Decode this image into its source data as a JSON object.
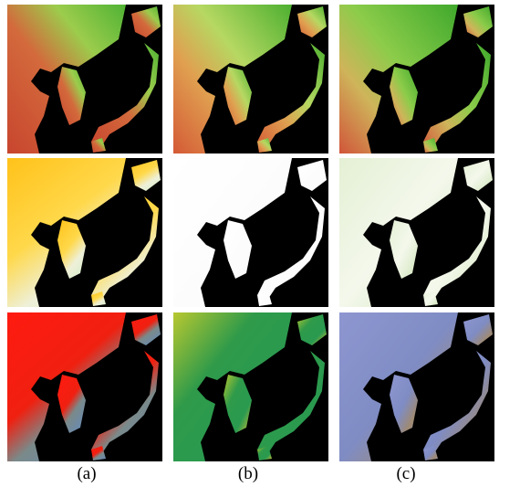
{
  "captions": [
    "(a)",
    "(b)",
    "(c)"
  ]
}
